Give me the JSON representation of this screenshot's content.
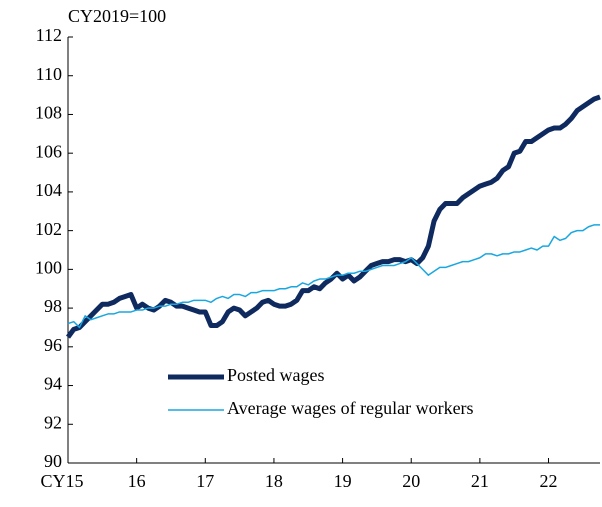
{
  "chart_data": {
    "type": "line",
    "y_label": "CY2019=100",
    "x": [
      15,
      15.083,
      15.167,
      15.25,
      15.333,
      15.417,
      15.5,
      15.583,
      15.667,
      15.75,
      15.833,
      15.917,
      16,
      16.083,
      16.167,
      16.25,
      16.333,
      16.417,
      16.5,
      16.583,
      16.667,
      16.75,
      16.833,
      16.917,
      17,
      17.083,
      17.167,
      17.25,
      17.333,
      17.417,
      17.5,
      17.583,
      17.667,
      17.75,
      17.833,
      17.917,
      18,
      18.083,
      18.167,
      18.25,
      18.333,
      18.417,
      18.5,
      18.583,
      18.667,
      18.75,
      18.833,
      18.917,
      19,
      19.083,
      19.167,
      19.25,
      19.333,
      19.417,
      19.5,
      19.583,
      19.667,
      19.75,
      19.833,
      19.917,
      20,
      20.083,
      20.167,
      20.25,
      20.333,
      20.417,
      20.5,
      20.583,
      20.667,
      20.75,
      20.833,
      20.917,
      21,
      21.083,
      21.167,
      21.25,
      21.333,
      21.417,
      21.5,
      21.583,
      21.667,
      21.75,
      21.833,
      21.917,
      22,
      22.083,
      22.167,
      22.25,
      22.333,
      22.417,
      22.5,
      22.583,
      22.667,
      22.75
    ],
    "series": [
      {
        "name": "Posted wages",
        "color": "#0f2a5f",
        "width": 5,
        "values": [
          96.5,
          96.9,
          97.0,
          97.3,
          97.6,
          97.9,
          98.2,
          98.2,
          98.3,
          98.5,
          98.6,
          98.7,
          98.0,
          98.2,
          98.0,
          97.9,
          98.1,
          98.4,
          98.3,
          98.1,
          98.1,
          98.0,
          97.9,
          97.8,
          97.8,
          97.1,
          97.1,
          97.3,
          97.8,
          98.0,
          97.9,
          97.6,
          97.8,
          98.0,
          98.3,
          98.4,
          98.2,
          98.1,
          98.1,
          98.2,
          98.4,
          98.9,
          98.9,
          99.1,
          99.0,
          99.3,
          99.5,
          99.8,
          99.5,
          99.7,
          99.4,
          99.6,
          99.9,
          100.2,
          100.3,
          100.4,
          100.4,
          100.5,
          100.5,
          100.4,
          100.5,
          100.3,
          100.6,
          101.2,
          102.5,
          103.1,
          103.4,
          103.4,
          103.4,
          103.7,
          103.9,
          104.1,
          104.3,
          104.4,
          104.5,
          104.7,
          105.1,
          105.3,
          106.0,
          106.1,
          106.6,
          106.6,
          106.8,
          107.0,
          107.2,
          107.3,
          107.3,
          107.5,
          107.8,
          108.2,
          108.4,
          108.6,
          108.8,
          108.9
        ]
      },
      {
        "name": "Average wages of regular workers",
        "color": "#1aa7e0",
        "width": 1.5,
        "values": [
          97.2,
          97.3,
          97.0,
          97.6,
          97.4,
          97.5,
          97.6,
          97.7,
          97.7,
          97.8,
          97.8,
          97.8,
          97.9,
          97.9,
          98.0,
          98.0,
          98.1,
          98.1,
          98.2,
          98.2,
          98.3,
          98.3,
          98.4,
          98.4,
          98.4,
          98.3,
          98.5,
          98.6,
          98.5,
          98.7,
          98.7,
          98.6,
          98.8,
          98.8,
          98.9,
          98.9,
          98.9,
          99.0,
          99.0,
          99.1,
          99.1,
          99.3,
          99.2,
          99.4,
          99.5,
          99.5,
          99.6,
          99.7,
          99.7,
          99.8,
          99.8,
          99.9,
          99.9,
          100.0,
          100.1,
          100.2,
          100.2,
          100.2,
          100.3,
          100.4,
          100.6,
          100.3,
          100.0,
          99.7,
          99.9,
          100.1,
          100.1,
          100.2,
          100.3,
          100.4,
          100.4,
          100.5,
          100.6,
          100.8,
          100.8,
          100.7,
          100.8,
          100.8,
          100.9,
          100.9,
          101.0,
          101.1,
          101.0,
          101.2,
          101.2,
          101.7,
          101.5,
          101.6,
          101.9,
          102.0,
          102.0,
          102.2,
          102.3,
          102.3
        ]
      }
    ],
    "xlim": [
      15,
      22.75
    ],
    "xticks": [
      {
        "value": 15,
        "label": "CY15"
      },
      16,
      17,
      18,
      19,
      20,
      21,
      22
    ],
    "ylim": [
      90,
      112
    ],
    "yticks": [
      90,
      92,
      94,
      96,
      98,
      100,
      102,
      104,
      106,
      108,
      110,
      112
    ],
    "grid": false
  }
}
